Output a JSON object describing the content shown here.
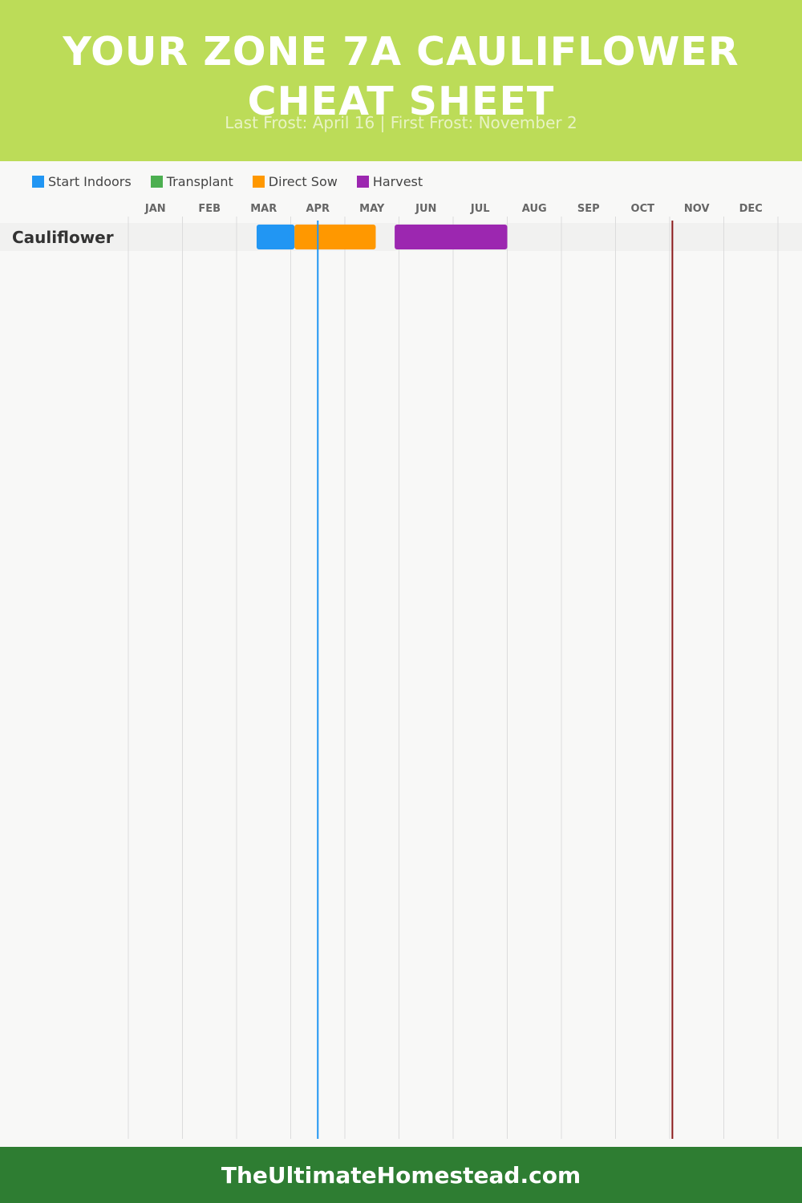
{
  "header": {
    "title": "YOUR ZONE 7A CAULIFLOWER CHEAT SHEET",
    "subtitle": "Last Frost: April 16 | First Frost: November 2"
  },
  "legend": [
    {
      "label": "Start Indoors",
      "color": "#2196f3"
    },
    {
      "label": "Transplant",
      "color": "#4caf50"
    },
    {
      "label": "Direct Sow",
      "color": "#ff9800"
    },
    {
      "label": "Harvest",
      "color": "#9c27b0"
    }
  ],
  "footer": {
    "site": "TheUltimateHomestead.com"
  },
  "chart_data": {
    "type": "gantt",
    "months": [
      "JAN",
      "FEB",
      "MAR",
      "APR",
      "MAY",
      "JUN",
      "JUL",
      "AUG",
      "SEP",
      "OCT",
      "NOV",
      "DEC"
    ],
    "x_range": [
      "Jan 1",
      "Dec 31"
    ],
    "frost_lines": [
      {
        "date": "April 16",
        "month_pos": 3.5,
        "color": "#2196f3"
      },
      {
        "date": "November 2",
        "month_pos": 10.05,
        "color": "#8b1a1a"
      }
    ],
    "crops": [
      {
        "name": "Cauliflower",
        "bars": [
          {
            "activity": "Start Indoors",
            "start": "Mar 12",
            "end": "Apr 1",
            "start_pos": 2.37,
            "end_pos": 3.07,
            "color": "#2196f3"
          },
          {
            "activity": "Direct Sow",
            "start": "Apr 1",
            "end": "May 16",
            "start_pos": 3.07,
            "end_pos": 4.57,
            "color": "#ff9800"
          },
          {
            "activity": "Harvest",
            "start": "May 27",
            "end": "Jul 31",
            "start_pos": 4.92,
            "end_pos": 7.0,
            "color": "#9c27b0"
          }
        ]
      }
    ],
    "grid": true,
    "legend_position": "top-left"
  }
}
